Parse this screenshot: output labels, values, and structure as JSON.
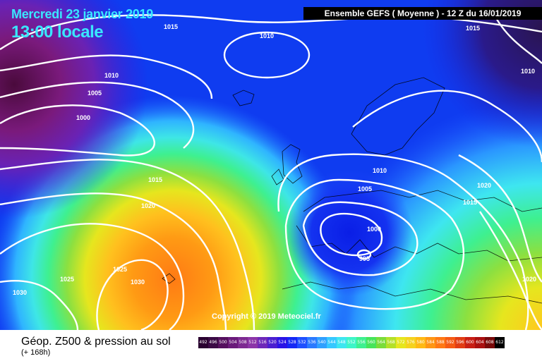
{
  "header": {
    "date": "Mercredi 23 janvier 2019",
    "local_time": "13:00 locale",
    "run_banner": "Ensemble GEFS  ( Moyenne )  -  12 Z du 16/01/2019"
  },
  "copyright": "Copyright © 2019 Meteociel.fr",
  "isobar_labels": [
    "1015",
    "1010",
    "1015",
    "1010",
    "1005",
    "1000",
    "1015",
    "1020",
    "1025",
    "1025",
    "1030",
    "1030",
    "1010",
    "1005",
    "1000",
    "995",
    "1020",
    "1015",
    "1020"
  ],
  "legend": {
    "title": "Géop. Z500 & pression au sol",
    "subtitle": "(+ 168h)",
    "scale_values": [
      "492",
      "496",
      "500",
      "504",
      "508",
      "512",
      "516",
      "520",
      "524",
      "528",
      "532",
      "536",
      "540",
      "544",
      "548",
      "552",
      "556",
      "560",
      "564",
      "568",
      "572",
      "576",
      "580",
      "584",
      "588",
      "592",
      "596",
      "600",
      "604",
      "608",
      "612"
    ],
    "scale_colors": [
      "#2a0030",
      "#3b0a45",
      "#55105e",
      "#6a1a7a",
      "#7d2a91",
      "#8c35a8",
      "#6e28b8",
      "#4b1fd0",
      "#2a14e6",
      "#1428f5",
      "#1e50ff",
      "#2a7aff",
      "#2fa0ff",
      "#36c8ff",
      "#3ee6f0",
      "#3ef5c8",
      "#3ef090",
      "#46e45a",
      "#7adc3a",
      "#b4e028",
      "#e6e61e",
      "#f5d21e",
      "#ffb914",
      "#ff9614",
      "#ff7814",
      "#f55a14",
      "#e13c14",
      "#c81e14",
      "#aa1010",
      "#780a0a",
      "#000000"
    ]
  },
  "colors": {
    "title": "#39e7ff",
    "isobar": "#ffffff",
    "ocean_blue": "#0a32f5",
    "warm_orange": "#ff8a1e"
  }
}
